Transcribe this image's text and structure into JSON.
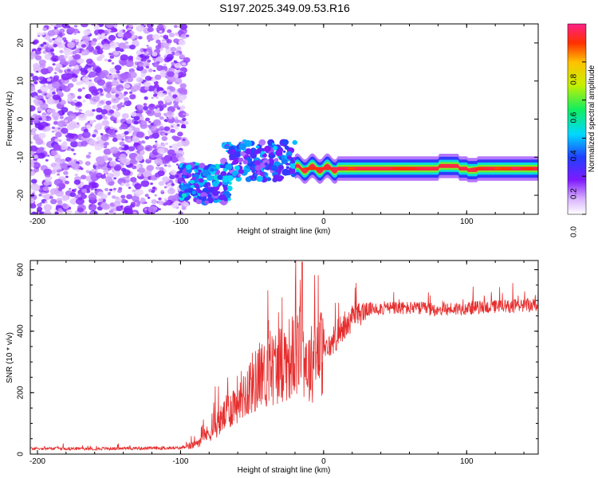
{
  "title": "S197.2025.349.09.53.R16",
  "chart_data": [
    {
      "type": "heatmap",
      "name": "spectrogram",
      "xlabel": "Height of straight line (km)",
      "ylabel": "Frequency (Hz)",
      "xlim": [
        -205,
        150
      ],
      "ylim": [
        -25,
        25
      ],
      "xticks": [
        -200,
        -100,
        0,
        100
      ],
      "yticks": [
        -20,
        -10,
        0,
        10,
        20
      ],
      "colorbar": {
        "label": "Normalized spectral amplitude",
        "range": [
          0,
          1
        ],
        "ticks": [
          "0.0",
          "0.2",
          "0.4",
          "0.6",
          "0.8"
        ],
        "tick_values": [
          0,
          0.2,
          0.4,
          0.6,
          0.8
        ]
      },
      "features": [
        {
          "name": "diffuse-noise",
          "x_range": [
            -205,
            -95
          ],
          "y_range": [
            -25,
            25
          ],
          "amplitude": 0.15
        },
        {
          "name": "blob-cluster-low",
          "x_range": [
            -100,
            -65
          ],
          "y_range": [
            -22,
            -12
          ],
          "amplitude": 0.35
        },
        {
          "name": "blob-cluster-mid",
          "x_range": [
            -70,
            -20
          ],
          "y_range": [
            -16,
            -6
          ],
          "amplitude": 0.3
        },
        {
          "name": "signal-line",
          "x_range": [
            -20,
            150
          ],
          "y_center": -13,
          "amplitude": 0.95
        }
      ]
    },
    {
      "type": "line",
      "name": "snr",
      "xlabel": "Height of straight line (km)",
      "ylabel": "SNR (10 * v/v)",
      "xlim": [
        -205,
        150
      ],
      "ylim": [
        0,
        630
      ],
      "xticks": [
        -200,
        -100,
        0,
        100
      ],
      "yticks": [
        0,
        200,
        400,
        600
      ],
      "color": "#e62e2e",
      "series": [
        {
          "name": "SNR",
          "x": [
            -205,
            -150,
            -100,
            -90,
            -80,
            -70,
            -60,
            -50,
            -40,
            -30,
            -20,
            -15,
            -10,
            -5,
            0,
            10,
            20,
            30,
            40,
            60,
            80,
            100,
            120,
            150
          ],
          "y": [
            18,
            18,
            20,
            30,
            70,
            120,
            180,
            230,
            260,
            300,
            320,
            340,
            280,
            330,
            330,
            380,
            440,
            470,
            475,
            475,
            470,
            475,
            480,
            485
          ]
        }
      ]
    }
  ]
}
